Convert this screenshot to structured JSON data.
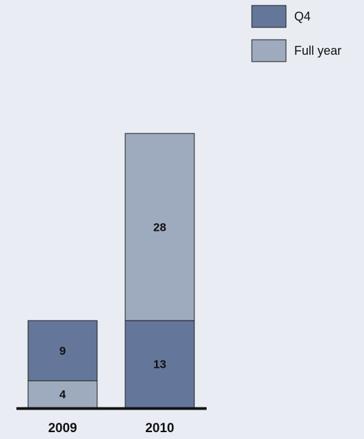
{
  "chart_data": {
    "type": "bar",
    "stacked": true,
    "categories": [
      "2009",
      "2010"
    ],
    "series": [
      {
        "name": "Q4",
        "values": [
          9,
          13
        ],
        "color": "#64779a"
      },
      {
        "name": "Full year",
        "values": [
          4,
          28
        ],
        "color": "#9eabbe"
      }
    ],
    "stack_order": {
      "2009": [
        "Full year",
        "Q4"
      ],
      "2010": [
        "Q4",
        "Full year"
      ]
    },
    "legend_position": "top-right",
    "axes_visible": false,
    "grid": false
  }
}
